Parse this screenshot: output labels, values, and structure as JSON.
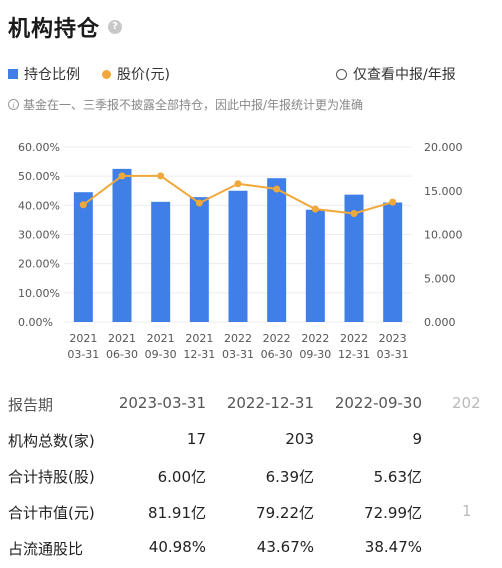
{
  "header": {
    "title": "机构持仓",
    "help_icon": "question-circle-icon"
  },
  "legend": {
    "bar_label": "持仓比例",
    "line_label": "股价(元)",
    "toggle_label": "仅查看中报/年报",
    "bar_color": "#3f7fe7",
    "line_color": "#f0a83a"
  },
  "note": {
    "icon": "info-circle-icon",
    "text": "基金在一、三季报不披露全部持仓，因此中报/年报统计更为准确"
  },
  "chart_data": {
    "type": "bar",
    "categories": [
      [
        "2021",
        "03-31"
      ],
      [
        "2021",
        "06-30"
      ],
      [
        "2021",
        "09-30"
      ],
      [
        "2021",
        "12-31"
      ],
      [
        "2022",
        "03-31"
      ],
      [
        "2022",
        "06-30"
      ],
      [
        "2022",
        "09-30"
      ],
      [
        "2022",
        "12-31"
      ],
      [
        "2023",
        "03-31"
      ]
    ],
    "series": [
      {
        "name": "持仓比例",
        "type": "bar",
        "axis": "left",
        "values": [
          44.5,
          52.5,
          41.2,
          42.8,
          45.0,
          49.3,
          38.5,
          43.67,
          40.98
        ]
      },
      {
        "name": "股价(元)",
        "type": "line",
        "axis": "right",
        "values": [
          13.4,
          16.7,
          16.7,
          13.6,
          15.8,
          15.2,
          12.9,
          12.4,
          13.7
        ]
      }
    ],
    "y_left": {
      "ticks": [
        "0.00%",
        "10.00%",
        "20.00%",
        "30.00%",
        "40.00%",
        "50.00%",
        "60.00%"
      ],
      "ylim": [
        0,
        60
      ]
    },
    "y_right": {
      "ticks": [
        "0.000",
        "5.000",
        "10.000",
        "15.000",
        "20.000"
      ],
      "ylim": [
        0,
        20
      ]
    },
    "grid": true
  },
  "table": {
    "header": {
      "label": "报告期",
      "cols": [
        "2023-03-31",
        "2022-12-31",
        "2022-09-30",
        "202"
      ]
    },
    "rows": [
      {
        "label": "机构总数(家)",
        "cols": [
          "17",
          "203",
          "9",
          ""
        ]
      },
      {
        "label": "合计持股(股)",
        "cols": [
          "6.00亿",
          "6.39亿",
          "5.63亿",
          ""
        ]
      },
      {
        "label": "合计市值(元)",
        "cols": [
          "81.91亿",
          "79.22亿",
          "72.99亿",
          "1"
        ]
      },
      {
        "label": "占流通股比",
        "cols": [
          "40.98%",
          "43.67%",
          "38.47%",
          ""
        ]
      }
    ]
  }
}
